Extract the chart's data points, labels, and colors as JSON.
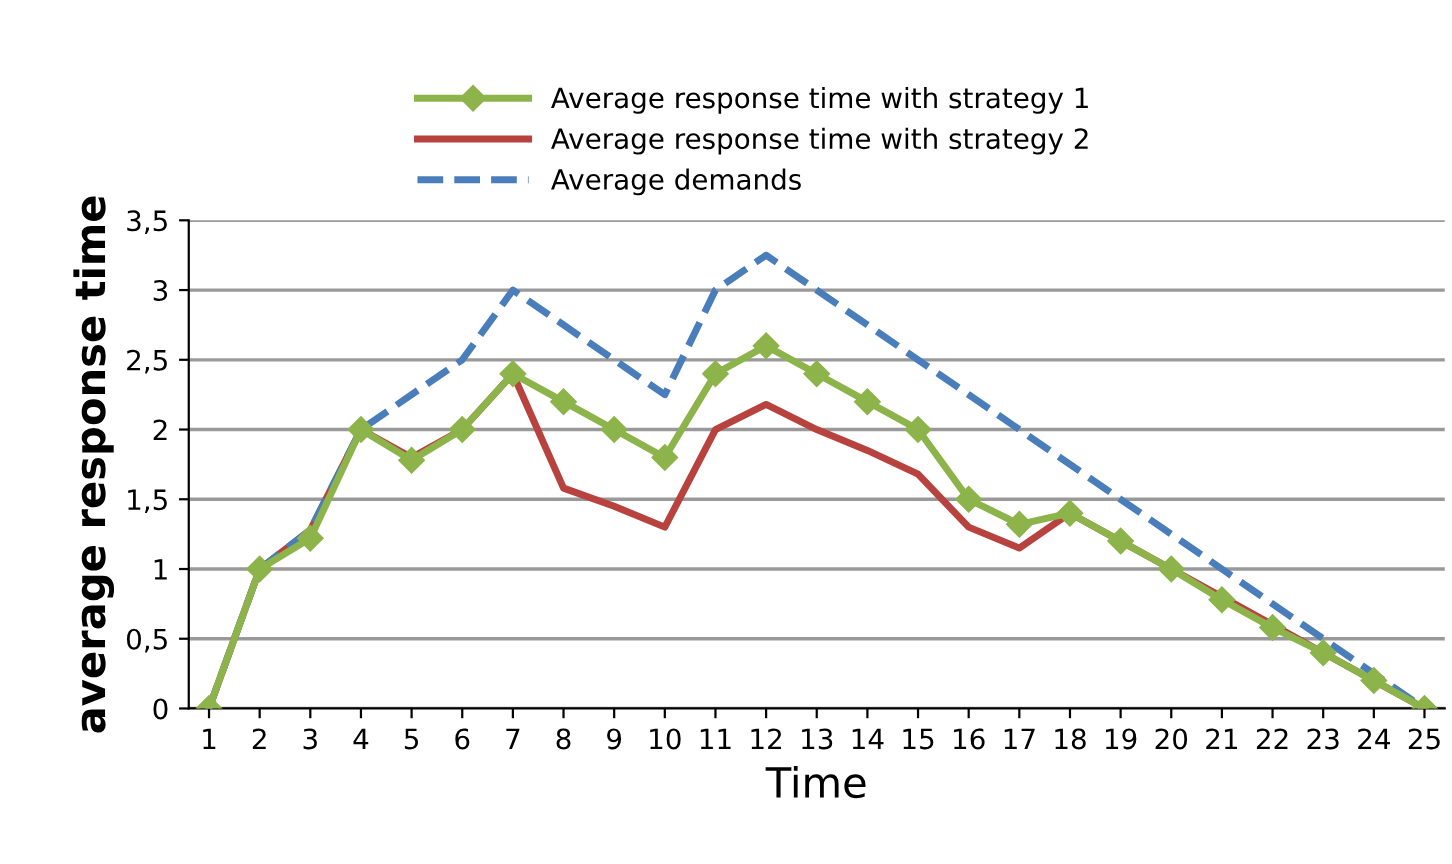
{
  "chart_data": {
    "type": "line",
    "xlabel": "Time",
    "ylabel": "average response time",
    "categories": [
      "1",
      "2",
      "3",
      "4",
      "5",
      "6",
      "7",
      "8",
      "9",
      "10",
      "11",
      "12",
      "13",
      "14",
      "15",
      "16",
      "17",
      "18",
      "19",
      "20",
      "21",
      "22",
      "23",
      "24",
      "25"
    ],
    "series": [
      {
        "name": "Average response time with strategy 1",
        "color": "#8db44a",
        "marker": "diamond",
        "line_style": "solid",
        "values": [
          0,
          1,
          1.22,
          2,
          1.78,
          2,
          2.4,
          2.2,
          2,
          1.8,
          2.4,
          2.6,
          2.4,
          2.2,
          2,
          1.5,
          1.32,
          1.4,
          1.2,
          1,
          0.78,
          0.58,
          0.4,
          0.2,
          0
        ]
      },
      {
        "name": "Average response time with strategy 2",
        "color": "#b8433e",
        "marker": "none",
        "line_style": "solid",
        "values": [
          0,
          1,
          1.28,
          2,
          1.8,
          2,
          2.4,
          1.58,
          1.45,
          1.3,
          2,
          2.18,
          2,
          1.85,
          1.68,
          1.3,
          1.15,
          1.4,
          1.2,
          1,
          0.8,
          0.6,
          0.4,
          0.2,
          0
        ]
      },
      {
        "name": "Average demands",
        "color": "#4a7ebb",
        "marker": "none",
        "line_style": "dashed",
        "values": [
          0,
          1,
          1.28,
          2,
          2.25,
          2.5,
          3,
          2.75,
          2.5,
          2.25,
          3,
          3.25,
          3,
          2.75,
          2.5,
          2.25,
          2,
          1.75,
          1.5,
          1.25,
          1,
          0.75,
          0.5,
          0.25,
          0
        ]
      }
    ],
    "ylim": [
      0,
      3.5
    ],
    "yticks": [
      {
        "value": 0,
        "label": "0"
      },
      {
        "value": 0.5,
        "label": "0,5"
      },
      {
        "value": 1,
        "label": "1"
      },
      {
        "value": 1.5,
        "label": "1,5"
      },
      {
        "value": 2,
        "label": "2"
      },
      {
        "value": 2.5,
        "label": "2,5"
      },
      {
        "value": 3,
        "label": "3"
      },
      {
        "value": 3.5,
        "label": "3,5"
      }
    ],
    "grid": "y",
    "legend": "top"
  }
}
